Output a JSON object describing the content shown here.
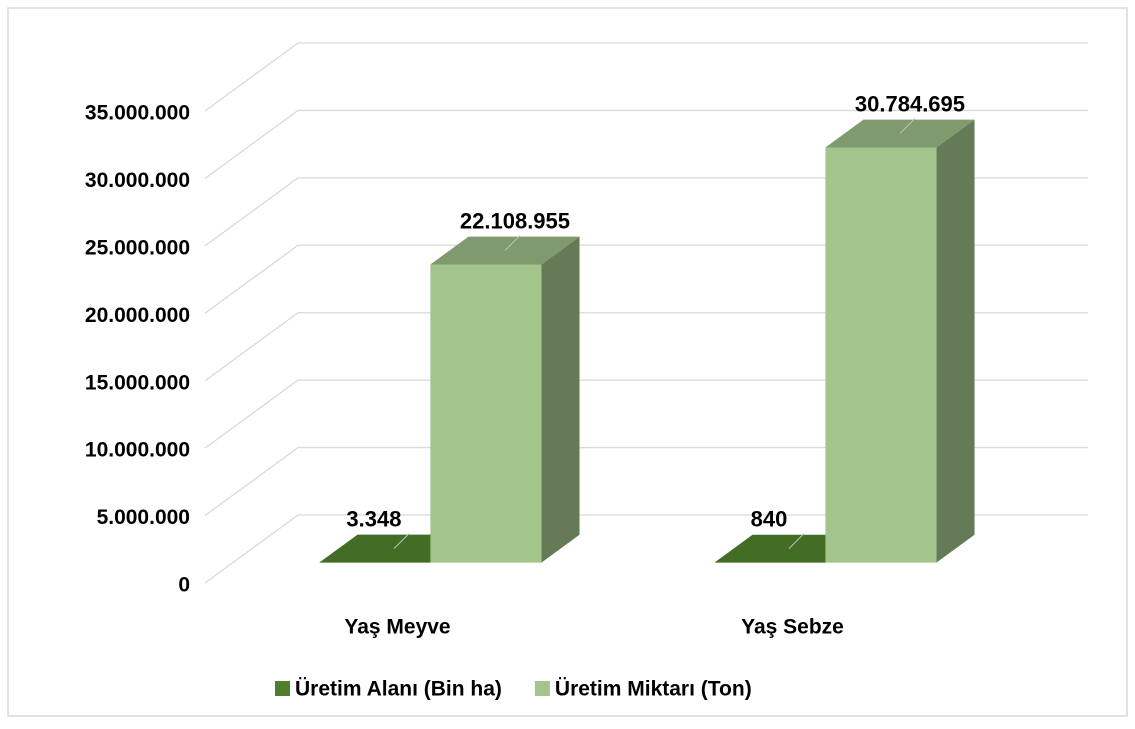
{
  "chart_data": {
    "type": "bar",
    "categories": [
      "Yaş Meyve",
      "Yaş Sebze"
    ],
    "series": [
      {
        "name": "Üretim Alanı (Bin ha)",
        "color": "#4f7f2a",
        "values": [
          3348,
          840
        ],
        "value_labels": [
          "3.348",
          "840"
        ]
      },
      {
        "name": "Üretim Miktarı (Ton)",
        "color": "#a3c58c",
        "values": [
          22108955,
          30784695
        ],
        "value_labels": [
          "22.108.955",
          "30.784.695"
        ]
      }
    ],
    "ylim": [
      0,
      35000000
    ],
    "yticks": [
      0,
      {
        "value": 5000000,
        "label": "5.000.000"
      },
      {
        "value": 10000000,
        "label": "10.000.000"
      },
      {
        "value": 15000000,
        "label": "15.000.000"
      },
      {
        "value": 20000000,
        "label": "20.000.000"
      },
      {
        "value": 25000000,
        "label": "25.000.000"
      },
      {
        "value": 30000000,
        "label": "30.000.000"
      },
      {
        "value": 35000000,
        "label": "35.000.000"
      }
    ],
    "grid": true,
    "legend": "bottom"
  }
}
